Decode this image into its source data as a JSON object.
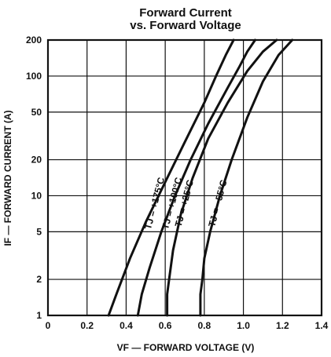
{
  "chart_data": {
    "type": "line",
    "title": "Forward Current",
    "subtitle": "vs. Forward Voltage",
    "xlabel": "VF — FORWARD VOLTAGE (V)",
    "ylabel": "IF — FORWARD CURRENT (A)",
    "xlim": [
      0,
      1.4
    ],
    "ylim": [
      1,
      200
    ],
    "y_scale": "log",
    "grid": true,
    "x_ticks": [
      "0",
      "0.2",
      "0.4",
      "0.6",
      "0.8",
      "1.0",
      "1.2",
      "1.4"
    ],
    "y_ticks": [
      "1",
      "2",
      "5",
      "10",
      "20",
      "50",
      "100",
      "200"
    ],
    "series": [
      {
        "name": "TJ = +175°C",
        "x": [
          0.31,
          0.35,
          0.42,
          0.5,
          0.6,
          0.7,
          0.8,
          0.86,
          0.91,
          0.95
        ],
        "y": [
          1,
          1.5,
          3,
          6,
          13,
          28,
          60,
          100,
          150,
          200
        ]
      },
      {
        "name": "TJ = +100°C",
        "x": [
          0.46,
          0.48,
          0.52,
          0.58,
          0.65,
          0.73,
          0.82,
          0.92,
          0.98,
          1.02,
          1.06
        ],
        "y": [
          1,
          1.5,
          2.5,
          5,
          10,
          20,
          40,
          80,
          120,
          160,
          200
        ]
      },
      {
        "name": "TJ = +25°C",
        "x": [
          0.61,
          0.61,
          0.62,
          0.64,
          0.68,
          0.74,
          0.82,
          0.92,
          1.02,
          1.1,
          1.17
        ],
        "y": [
          1,
          1.5,
          2,
          3.5,
          7,
          14,
          30,
          60,
          110,
          160,
          200
        ]
      },
      {
        "name": "TJ = −55°C",
        "x": [
          0.78,
          0.78,
          0.79,
          0.8,
          0.83,
          0.88,
          0.94,
          1.02,
          1.1,
          1.18,
          1.25
        ],
        "y": [
          1,
          1.5,
          2,
          3,
          5,
          10,
          20,
          45,
          90,
          150,
          200
        ]
      }
    ]
  }
}
